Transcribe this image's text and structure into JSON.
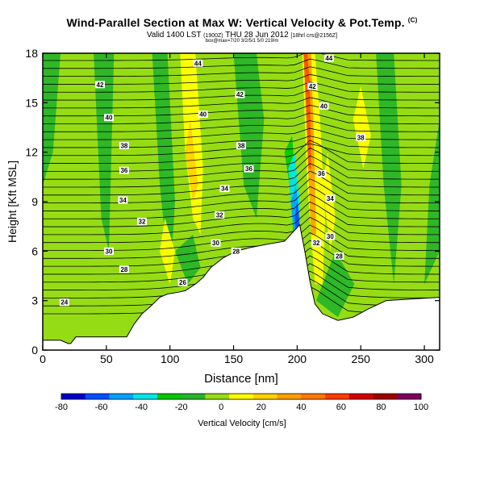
{
  "title": "Wind-Parallel Section at Max W: Vertical Velocity & Pot.Temp.",
  "title_mark": "(C)",
  "subtitle_pre": "Valid 1400 LST",
  "subtitle_small1": "(1900Z)",
  "subtitle_mid": "THU 28 Jun 2012",
  "subtitle_small2": "[18hrl crs@2156Z]",
  "subtitle_bbox": "box@max=7/20 3/2/5/1 5/0 219/m",
  "chart_data": {
    "type": "heatmap",
    "title": "Wind-Parallel Section at Max W: Vertical Velocity & Pot.Temp.",
    "xlabel": "Distance [nm]",
    "ylabel": "Height [Kft MSL]",
    "xlim": [
      0,
      312
    ],
    "ylim": [
      0,
      18
    ],
    "xticks": [
      "0",
      "50",
      "100",
      "150",
      "200",
      "250",
      "300"
    ],
    "yticks": [
      "0",
      "3",
      "6",
      "9",
      "12",
      "15",
      "18"
    ],
    "colorbar": {
      "label": "Vertical Velocity [cm/s]",
      "ticks": [
        "-80",
        "-60",
        "-40",
        "-20",
        "0",
        "20",
        "40",
        "60",
        "80",
        "100"
      ],
      "range": [
        -80,
        100
      ],
      "colors": [
        "#0000c8",
        "#0050ff",
        "#00a0ff",
        "#00e6e6",
        "#00c800",
        "#28b428",
        "#96dc14",
        "#ffff00",
        "#ffd200",
        "#ffa000",
        "#ff7800",
        "#ff3c00",
        "#d20000",
        "#a00000",
        "#800060"
      ]
    },
    "contour_labels": [
      {
        "text": "44",
        "x": 122,
        "y": 17.4
      },
      {
        "text": "44",
        "x": 225,
        "y": 17.7
      },
      {
        "text": "42",
        "x": 45,
        "y": 16.1
      },
      {
        "text": "42",
        "x": 155,
        "y": 15.5
      },
      {
        "text": "42",
        "x": 212,
        "y": 16.0
      },
      {
        "text": "40",
        "x": 52,
        "y": 14.1
      },
      {
        "text": "40",
        "x": 126,
        "y": 14.3
      },
      {
        "text": "40",
        "x": 221,
        "y": 14.8
      },
      {
        "text": "38",
        "x": 64,
        "y": 12.4
      },
      {
        "text": "38",
        "x": 156,
        "y": 12.4
      },
      {
        "text": "38",
        "x": 250,
        "y": 12.9
      },
      {
        "text": "36",
        "x": 64,
        "y": 10.9
      },
      {
        "text": "36",
        "x": 162,
        "y": 11.0
      },
      {
        "text": "36",
        "x": 219,
        "y": 10.7
      },
      {
        "text": "34",
        "x": 63,
        "y": 9.1
      },
      {
        "text": "34",
        "x": 143,
        "y": 9.8
      },
      {
        "text": "34",
        "x": 226,
        "y": 9.2
      },
      {
        "text": "32",
        "x": 78,
        "y": 7.8
      },
      {
        "text": "32",
        "x": 139,
        "y": 8.2
      },
      {
        "text": "32",
        "x": 215,
        "y": 6.5
      },
      {
        "text": "30",
        "x": 52,
        "y": 6.0
      },
      {
        "text": "30",
        "x": 136,
        "y": 6.5
      },
      {
        "text": "30",
        "x": 226,
        "y": 6.9
      },
      {
        "text": "28",
        "x": 64,
        "y": 4.9
      },
      {
        "text": "28",
        "x": 152,
        "y": 6.0
      },
      {
        "text": "28",
        "x": 233,
        "y": 5.7
      },
      {
        "text": "26",
        "x": 110,
        "y": 4.1
      },
      {
        "text": "24",
        "x": 17,
        "y": 2.9
      }
    ],
    "terrain_top": [
      [
        0,
        0.6
      ],
      [
        14,
        0.6
      ],
      [
        20,
        0.4
      ],
      [
        22,
        0.4
      ],
      [
        26,
        0.8
      ],
      [
        66,
        0.8
      ],
      [
        72,
        1.6
      ],
      [
        78,
        2.2
      ],
      [
        84,
        2.6
      ],
      [
        92,
        3.2
      ],
      [
        98,
        3.4
      ],
      [
        106,
        3.5
      ],
      [
        112,
        3.6
      ],
      [
        120,
        4.0
      ],
      [
        126,
        4.4
      ],
      [
        132,
        5.0
      ],
      [
        142,
        5.6
      ],
      [
        152,
        6.0
      ],
      [
        162,
        6.2
      ],
      [
        175,
        6.4
      ],
      [
        190,
        6.6
      ],
      [
        202,
        7.6
      ],
      [
        206,
        6.0
      ],
      [
        210,
        4.2
      ],
      [
        214,
        2.8
      ],
      [
        220,
        2.2
      ],
      [
        232,
        1.8
      ],
      [
        244,
        2.0
      ],
      [
        256,
        2.5
      ],
      [
        270,
        3.0
      ],
      [
        290,
        3.1
      ],
      [
        312,
        3.2
      ]
    ]
  }
}
